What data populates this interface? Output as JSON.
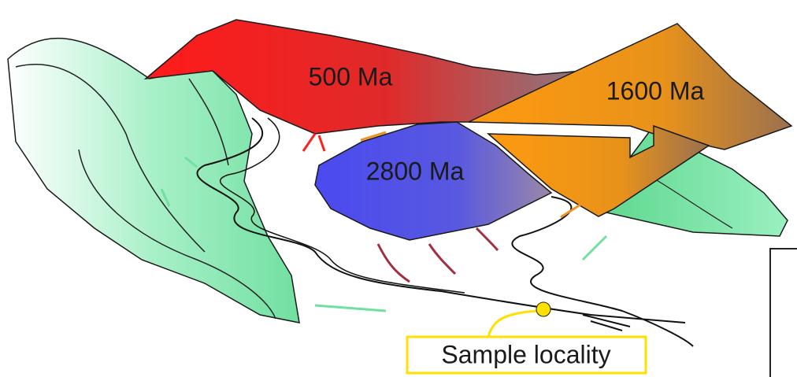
{
  "labels": {
    "red_terrane": "500 Ma",
    "orange_terrane": "1600 Ma",
    "blue_terrane": "2800 Ma"
  },
  "callout": {
    "text": "Sample locality"
  }
}
